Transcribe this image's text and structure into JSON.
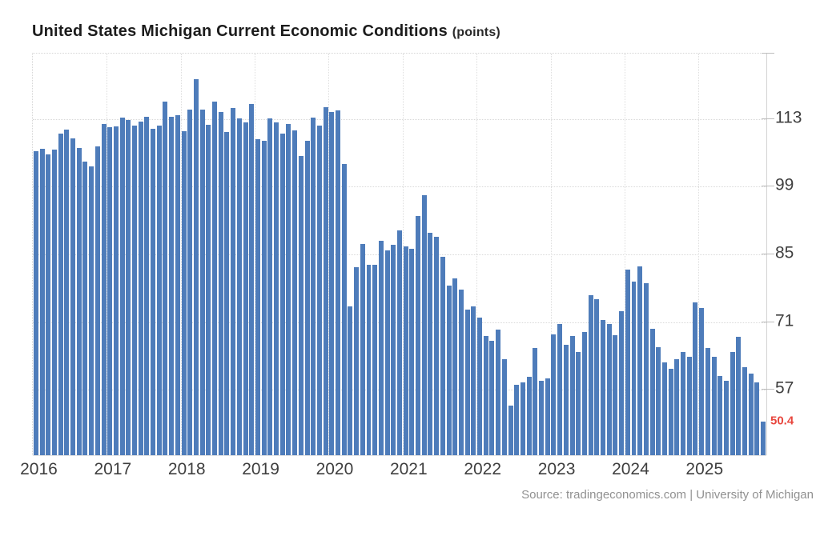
{
  "header": {
    "title": "United States Michigan Current Economic Conditions",
    "unit_suffix": "(points)"
  },
  "source_line": "Source: tradingeconomics.com | University of Michigan",
  "colors": {
    "bar": "#4e7cba",
    "grid": "#d9d9d9",
    "tick_text": "#3f3f3f",
    "last_value": "#e8473e",
    "source_text": "#919191"
  },
  "chart_data": {
    "type": "bar",
    "title": "United States Michigan Current Economic Conditions",
    "ylabel": "points",
    "frequency": "monthly",
    "ylim": [
      43.5,
      126.5
    ],
    "y_ticks": [
      57,
      71,
      85,
      99,
      113
    ],
    "y_ticks_side": "right",
    "grid": "dotted",
    "legend": "none",
    "x_tick_labels": [
      "2016",
      "2017",
      "2018",
      "2019",
      "2020",
      "2021",
      "2022",
      "2023",
      "2024",
      "2025"
    ],
    "last_point_label": "50.4",
    "series": [
      {
        "name": "Michigan Current Economic Conditions",
        "years": [
          {
            "year": "2016",
            "values": [
              106.4,
              106.8,
              105.6,
              106.7,
              109.9,
              110.8,
              109.0,
              107.0,
              104.2,
              103.2,
              107.3,
              111.9
            ]
          },
          {
            "year": "2017",
            "values": [
              111.3,
              111.5,
              113.2,
              112.7,
              111.7,
              112.5,
              113.4,
              110.9,
              111.7,
              116.5,
              113.5,
              113.8
            ]
          },
          {
            "year": "2018",
            "values": [
              110.5,
              114.9,
              121.2,
              114.9,
              111.8,
              116.5,
              114.4,
              110.3,
              115.2,
              113.1,
              112.3,
              116.1
            ]
          },
          {
            "year": "2019",
            "values": [
              108.8,
              108.5,
              113.1,
              112.3,
              110.0,
              111.9,
              110.7,
              105.3,
              108.5,
              113.2,
              111.6,
              115.5
            ]
          },
          {
            "year": "2020",
            "values": [
              114.4,
              114.8,
              103.7,
              74.3,
              82.3,
              87.1,
              82.8,
              82.9,
              87.8,
              85.9,
              87.0,
              90.0
            ]
          },
          {
            "year": "2021",
            "values": [
              86.7,
              86.2,
              93.0,
              97.2,
              89.4,
              88.6,
              84.5,
              78.5,
              80.1,
              77.7,
              73.6,
              74.2
            ]
          },
          {
            "year": "2022",
            "values": [
              72.0,
              68.2,
              67.2,
              69.4,
              63.3,
              53.8,
              58.1,
              58.6,
              59.7,
              65.6,
              58.8,
              59.4
            ]
          },
          {
            "year": "2023",
            "values": [
              68.4,
              70.7,
              66.3,
              68.2,
              64.9,
              69.0,
              76.6,
              75.7,
              71.4,
              70.6,
              68.3,
              73.3
            ]
          },
          {
            "year": "2024",
            "values": [
              81.9,
              79.4,
              82.5,
              79.0,
              69.6,
              65.9,
              62.7,
              61.3,
              63.3,
              64.9,
              63.9,
              75.1
            ]
          },
          {
            "year": "2025",
            "values": [
              74.0,
              65.7,
              63.8,
              59.8,
              58.9,
              64.8,
              68.0,
              61.7,
              60.4,
              58.6,
              50.4
            ]
          }
        ]
      }
    ]
  }
}
